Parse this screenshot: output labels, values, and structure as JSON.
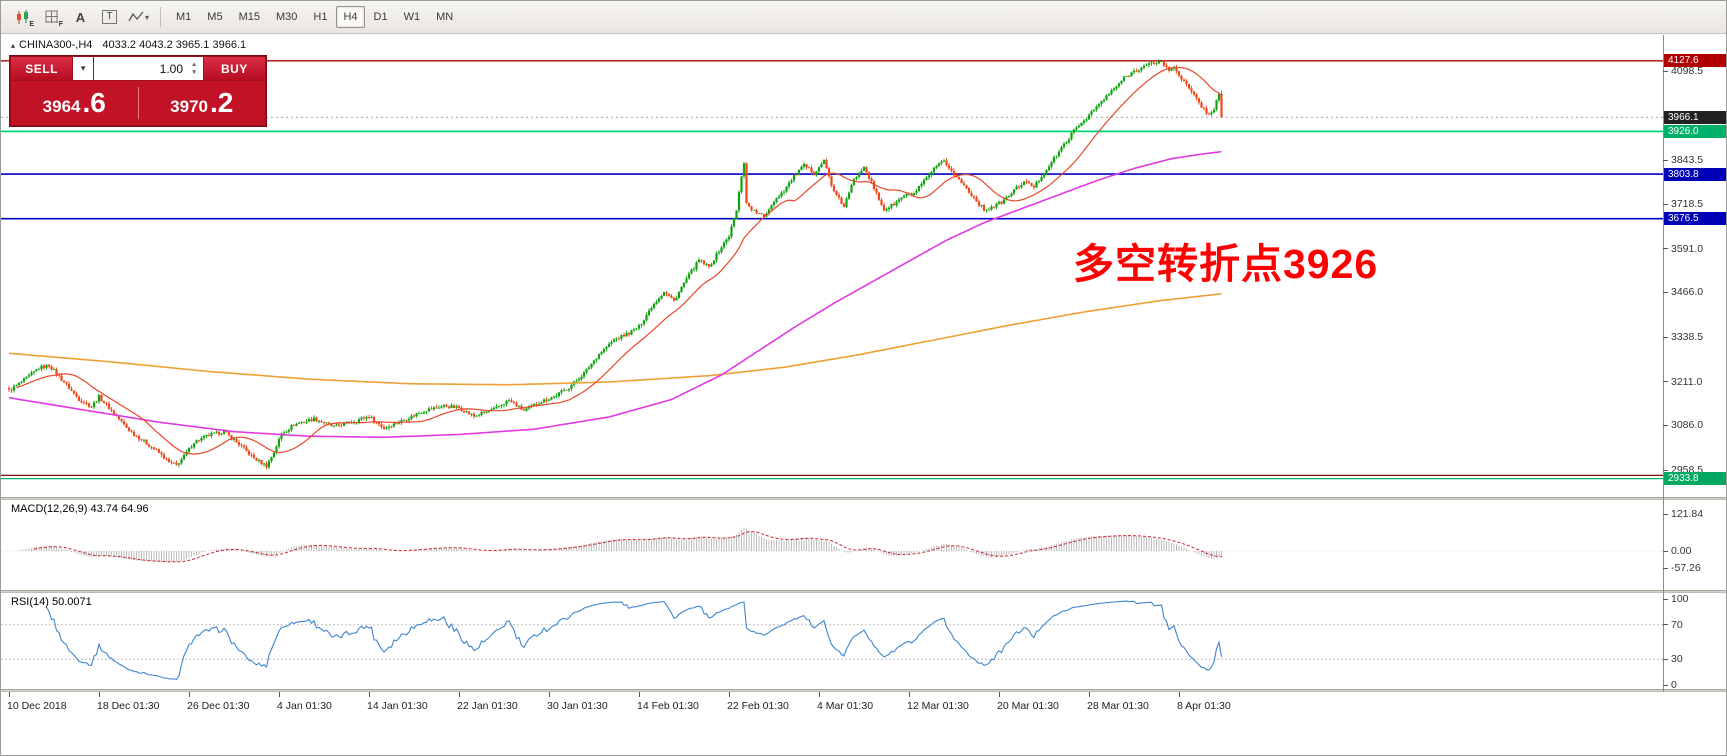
{
  "toolbar": {
    "tools": [
      {
        "name": "candlestick-chart-icon",
        "glyph": "candles",
        "sub": "E"
      },
      {
        "name": "grid-icon",
        "glyph": "grid",
        "sub": "F"
      },
      {
        "name": "font-label-icon",
        "glyph": "A"
      },
      {
        "name": "text-box-icon",
        "glyph": "T"
      },
      {
        "name": "line-studies-icon",
        "glyph": "zigzag",
        "caret": true
      }
    ],
    "timeframes": [
      "M1",
      "M5",
      "M15",
      "M30",
      "H1",
      "H4",
      "D1",
      "W1",
      "MN"
    ],
    "selected_timeframe": "H4"
  },
  "header": {
    "symbol_line": "CHINA300-,H4",
    "ohlc": "4033.2 4043.2 3965.1 3966.1"
  },
  "trade_panel": {
    "sell_label": "SELL",
    "buy_label": "BUY",
    "volume": "1.00",
    "sell_price_main": "3964",
    "sell_price_pips": ".6",
    "buy_price_main": "3970",
    "buy_price_pips": ".2"
  },
  "annotation": {
    "text": "多空转折点3926",
    "color": "#ff0000"
  },
  "indicators": {
    "macd_label": "MACD(12,26,9) 43.74 64.96",
    "rsi_label": "RSI(14) 50.0071"
  },
  "axis": {
    "price_ticks": [
      4098.5,
      3843.5,
      3718.5,
      3591.0,
      3466.0,
      3338.5,
      3211.0,
      3086.0,
      2958.5
    ],
    "macd_ticks": [
      121.84,
      0,
      -57.26
    ],
    "rsi_ticks": [
      100,
      70,
      30,
      0
    ],
    "badges": [
      {
        "price": 4127.6,
        "color": "#b20000"
      },
      {
        "price": 3966.1,
        "color": "#222222"
      },
      {
        "price": 3926.0,
        "color": "#00b06a"
      },
      {
        "price": 3803.8,
        "color": "#0000b4"
      },
      {
        "price": 3676.5,
        "color": "#0000b4"
      },
      {
        "price": 2933.8,
        "color": "#00a862"
      }
    ]
  },
  "chart_data": {
    "type": "candlestick",
    "symbol": "CHINA300-",
    "timeframe": "H4",
    "current_bar": {
      "open": 4033.2,
      "high": 4043.2,
      "low": 3965.1,
      "close": 3966.1
    },
    "candle_count": 486,
    "ylim": [
      2881,
      4201
    ],
    "price_path": [
      [
        0,
        3185
      ],
      [
        6,
        3215
      ],
      [
        12,
        3250
      ],
      [
        16,
        3258
      ],
      [
        22,
        3210
      ],
      [
        28,
        3160
      ],
      [
        33,
        3140
      ],
      [
        36,
        3168
      ],
      [
        42,
        3120
      ],
      [
        48,
        3072
      ],
      [
        54,
        3040
      ],
      [
        60,
        3008
      ],
      [
        64,
        2980
      ],
      [
        67,
        2972
      ],
      [
        70,
        2998
      ],
      [
        74,
        3038
      ],
      [
        80,
        3058
      ],
      [
        86,
        3068
      ],
      [
        92,
        3032
      ],
      [
        98,
        2992
      ],
      [
        103,
        2970
      ],
      [
        106,
        3010
      ],
      [
        109,
        3062
      ],
      [
        114,
        3088
      ],
      [
        122,
        3105
      ],
      [
        130,
        3082
      ],
      [
        138,
        3098
      ],
      [
        144,
        3112
      ],
      [
        150,
        3078
      ],
      [
        158,
        3102
      ],
      [
        166,
        3128
      ],
      [
        174,
        3142
      ],
      [
        180,
        3136
      ],
      [
        186,
        3112
      ],
      [
        194,
        3132
      ],
      [
        200,
        3158
      ],
      [
        206,
        3128
      ],
      [
        212,
        3152
      ],
      [
        218,
        3168
      ],
      [
        224,
        3195
      ],
      [
        230,
        3235
      ],
      [
        236,
        3290
      ],
      [
        242,
        3330
      ],
      [
        248,
        3350
      ],
      [
        252,
        3368
      ],
      [
        257,
        3425
      ],
      [
        262,
        3468
      ],
      [
        266,
        3442
      ],
      [
        271,
        3505
      ],
      [
        276,
        3558
      ],
      [
        280,
        3538
      ],
      [
        284,
        3585
      ],
      [
        288,
        3628
      ],
      [
        291,
        3700
      ],
      [
        293,
        3800
      ],
      [
        294,
        3838
      ],
      [
        295,
        3720
      ],
      [
        298,
        3698
      ],
      [
        302,
        3682
      ],
      [
        306,
        3728
      ],
      [
        310,
        3758
      ],
      [
        314,
        3798
      ],
      [
        318,
        3828
      ],
      [
        322,
        3808
      ],
      [
        326,
        3842
      ],
      [
        330,
        3752
      ],
      [
        334,
        3712
      ],
      [
        338,
        3788
      ],
      [
        342,
        3828
      ],
      [
        346,
        3762
      ],
      [
        350,
        3702
      ],
      [
        354,
        3718
      ],
      [
        358,
        3742
      ],
      [
        362,
        3748
      ],
      [
        366,
        3782
      ],
      [
        370,
        3818
      ],
      [
        374,
        3842
      ],
      [
        378,
        3802
      ],
      [
        382,
        3772
      ],
      [
        386,
        3736
      ],
      [
        390,
        3702
      ],
      [
        394,
        3712
      ],
      [
        398,
        3728
      ],
      [
        402,
        3758
      ],
      [
        406,
        3782
      ],
      [
        410,
        3768
      ],
      [
        414,
        3808
      ],
      [
        418,
        3848
      ],
      [
        422,
        3888
      ],
      [
        426,
        3928
      ],
      [
        430,
        3958
      ],
      [
        434,
        3988
      ],
      [
        438,
        4018
      ],
      [
        442,
        4048
      ],
      [
        446,
        4078
      ],
      [
        450,
        4098
      ],
      [
        454,
        4112
      ],
      [
        458,
        4122
      ],
      [
        461,
        4126
      ],
      [
        464,
        4098
      ],
      [
        466,
        4112
      ],
      [
        468,
        4088
      ],
      [
        471,
        4058
      ],
      [
        474,
        4028
      ],
      [
        477,
        3998
      ],
      [
        480,
        3972
      ],
      [
        482,
        3992
      ],
      [
        484,
        4033
      ],
      [
        485,
        3966.1
      ]
    ],
    "ma_fast_period": 20,
    "ma_mid_path": [
      [
        0,
        3165
      ],
      [
        30,
        3130
      ],
      [
        60,
        3095
      ],
      [
        90,
        3068
      ],
      [
        120,
        3055
      ],
      [
        150,
        3052
      ],
      [
        180,
        3060
      ],
      [
        210,
        3075
      ],
      [
        240,
        3110
      ],
      [
        265,
        3160
      ],
      [
        285,
        3230
      ],
      [
        300,
        3300
      ],
      [
        315,
        3370
      ],
      [
        330,
        3435
      ],
      [
        345,
        3495
      ],
      [
        360,
        3555
      ],
      [
        375,
        3615
      ],
      [
        390,
        3665
      ],
      [
        405,
        3705
      ],
      [
        420,
        3745
      ],
      [
        435,
        3785
      ],
      [
        450,
        3820
      ],
      [
        465,
        3848
      ],
      [
        478,
        3862
      ],
      [
        485,
        3868
      ]
    ],
    "ma_slow_path": [
      [
        0,
        3292
      ],
      [
        40,
        3268
      ],
      [
        80,
        3240
      ],
      [
        120,
        3218
      ],
      [
        160,
        3205
      ],
      [
        200,
        3202
      ],
      [
        240,
        3210
      ],
      [
        280,
        3228
      ],
      [
        310,
        3252
      ],
      [
        340,
        3288
      ],
      [
        370,
        3330
      ],
      [
        400,
        3372
      ],
      [
        430,
        3410
      ],
      [
        460,
        3442
      ],
      [
        485,
        3462
      ]
    ],
    "hlines": [
      {
        "price": 4127.6,
        "color": "#b20000",
        "width": 1.3
      },
      {
        "price": 3926.0,
        "color": "#00d87d",
        "width": 1.8
      },
      {
        "price": 3803.8,
        "color": "#0000c8",
        "width": 1.6
      },
      {
        "price": 3676.5,
        "color": "#0000c8",
        "width": 1.6
      },
      {
        "price": 2943.0,
        "color": "#7d1010",
        "width": 1.2
      },
      {
        "price": 2933.8,
        "color": "#00b468",
        "width": 1.3
      }
    ],
    "time_labels": [
      {
        "idx": 0,
        "text": "10 Dec 2018"
      },
      {
        "idx": 36,
        "text": "18 Dec 01:30"
      },
      {
        "idx": 72,
        "text": "26 Dec 01:30"
      },
      {
        "idx": 108,
        "text": "4 Jan 01:30"
      },
      {
        "idx": 144,
        "text": "14 Jan 01:30"
      },
      {
        "idx": 180,
        "text": "22 Jan 01:30"
      },
      {
        "idx": 216,
        "text": "30 Jan 01:30"
      },
      {
        "idx": 252,
        "text": "14 Feb 01:30"
      },
      {
        "idx": 288,
        "text": "22 Feb 01:30"
      },
      {
        "idx": 324,
        "text": "4 Mar 01:30"
      },
      {
        "idx": 360,
        "text": "12 Mar 01:30"
      },
      {
        "idx": 396,
        "text": "20 Mar 01:30"
      },
      {
        "idx": 432,
        "text": "28 Mar 01:30"
      },
      {
        "idx": 468,
        "text": "8 Apr 01:30"
      }
    ],
    "macd": {
      "fast": 12,
      "slow": 26,
      "signal": 9,
      "current": [
        43.74,
        64.96
      ],
      "range": [
        -57.26,
        121.84
      ]
    },
    "rsi": {
      "period": 14,
      "current": 50.0071,
      "levels": [
        30,
        70
      ]
    },
    "colors": {
      "up": "#0fa40f",
      "down": "#ef4718",
      "ma_fast": "#e8472a",
      "ma_mid": "#e03ae0",
      "ma_slow": "#eea032",
      "rsi": "#3e86d0",
      "macd_hist": "#bcbcbc",
      "macd_signal": "#cc2233"
    }
  }
}
